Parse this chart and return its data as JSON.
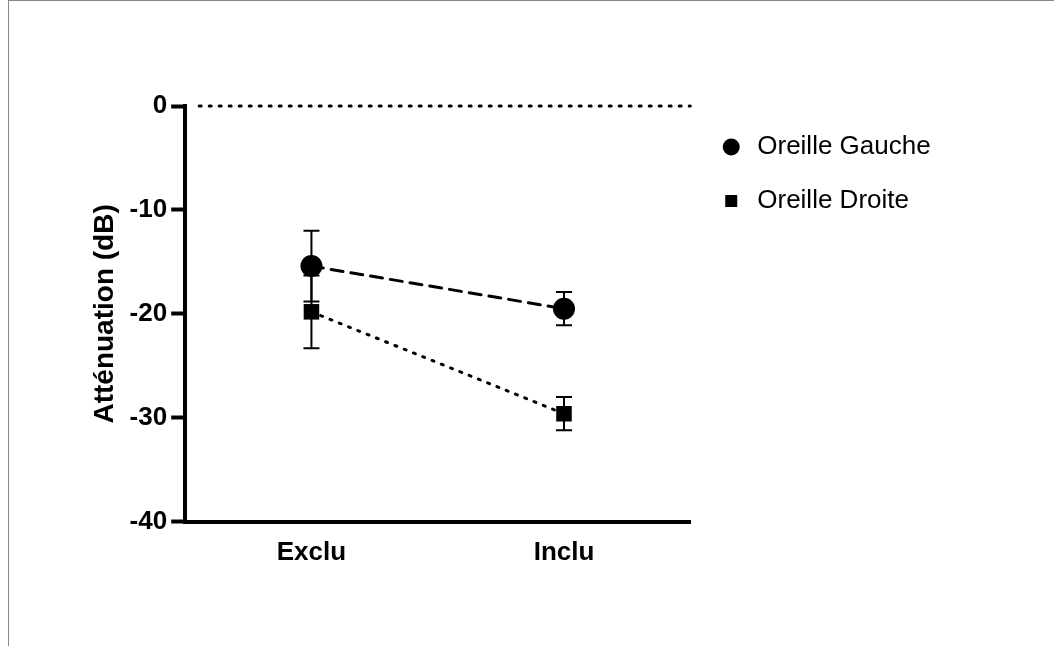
{
  "chart_data": {
    "type": "line",
    "ylabel": "Atténuation (dB)",
    "categories": [
      "Exclu",
      "Inclu"
    ],
    "series": [
      {
        "name": "Oreille Gauche",
        "color": "#000000",
        "values": [
          -15.4,
          -19.5
        ],
        "errors": [
          3.4,
          1.6
        ],
        "marker": "circle",
        "line_style": "dashed"
      },
      {
        "name": "Oreille Droite",
        "color": "#000000",
        "values": [
          -19.8,
          -29.6
        ],
        "errors": [
          3.5,
          1.6
        ],
        "marker": "square",
        "line_style": "dotted"
      }
    ],
    "ylim": [
      -40,
      0
    ],
    "yticks": [
      -40,
      -30,
      -20,
      -10,
      0
    ],
    "grid": false,
    "legend": "top right",
    "ref_lines": [
      {
        "axis": "y",
        "value": 0,
        "line_style": "dotted",
        "color": "#000000"
      }
    ]
  }
}
